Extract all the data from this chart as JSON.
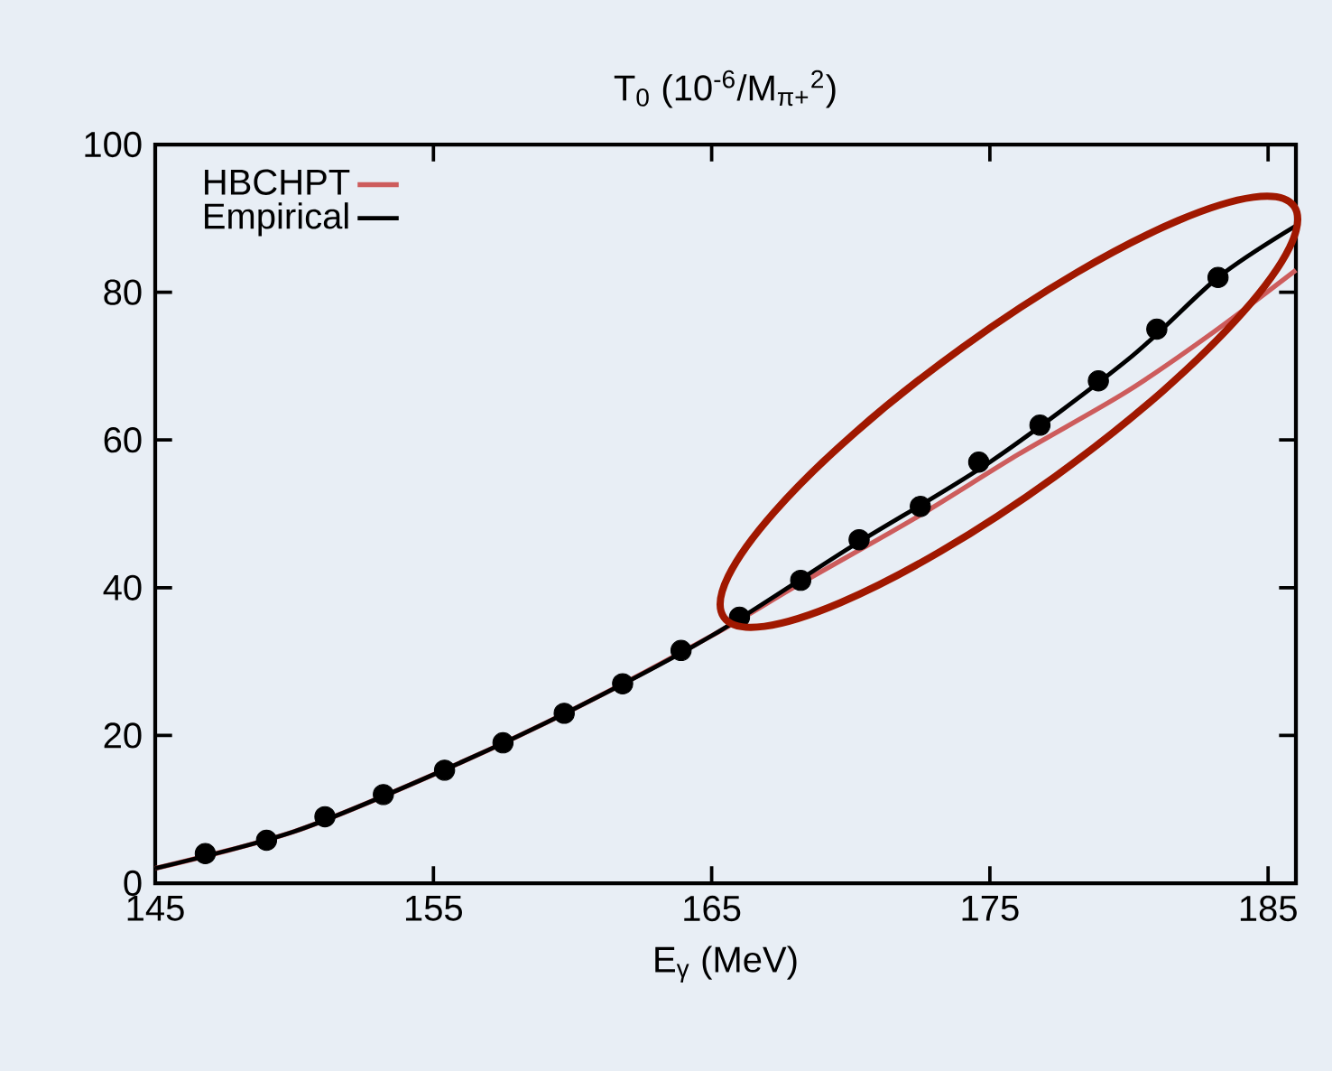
{
  "chart_data": {
    "type": "line",
    "title": "T$_{0}$ (10$^{-6}$/M$_{π+}$$^{2}$)",
    "xlabel": "E$_{γ}$ (MeV)",
    "series": [
      {
        "name": "HBCHPT",
        "color": "#cd5c5c",
        "x": [
          145,
          150,
          155,
          160,
          165,
          168.2,
          172.3,
          176,
          179.9,
          183,
          186
        ],
        "values": [
          2,
          7,
          14.7,
          23.5,
          33.5,
          40.6,
          49.4,
          58,
          66.5,
          74.5,
          83
        ]
      },
      {
        "name": "Empirical",
        "color": "#000000",
        "x": [
          145,
          150,
          155,
          160,
          165,
          170,
          175,
          180,
          183.2,
          186
        ],
        "values": [
          2,
          7,
          14.7,
          23.5,
          33.5,
          45.5,
          57,
          71,
          82,
          89
        ]
      },
      {
        "type": "scatter",
        "marker": "circle",
        "color": "#000000",
        "x": [
          146.8,
          149.0,
          151.1,
          153.2,
          155.4,
          157.5,
          159.7,
          161.8,
          163.9,
          166.0,
          168.2,
          170.3,
          172.5,
          174.6,
          176.8,
          178.9,
          181.0,
          183.2
        ],
        "values": [
          4,
          5.8,
          9,
          12,
          15.3,
          19,
          23,
          27,
          31.5,
          36,
          41,
          46.5,
          51,
          57,
          62,
          68,
          75,
          82
        ]
      }
    ],
    "xlim": [
      145,
      186
    ],
    "ylim": [
      0,
      100
    ],
    "xticks": [
      145,
      155,
      165,
      175,
      185
    ],
    "yticks": [
      0,
      20,
      40,
      60,
      80,
      100
    ],
    "grid": false,
    "legend": "top left"
  }
}
